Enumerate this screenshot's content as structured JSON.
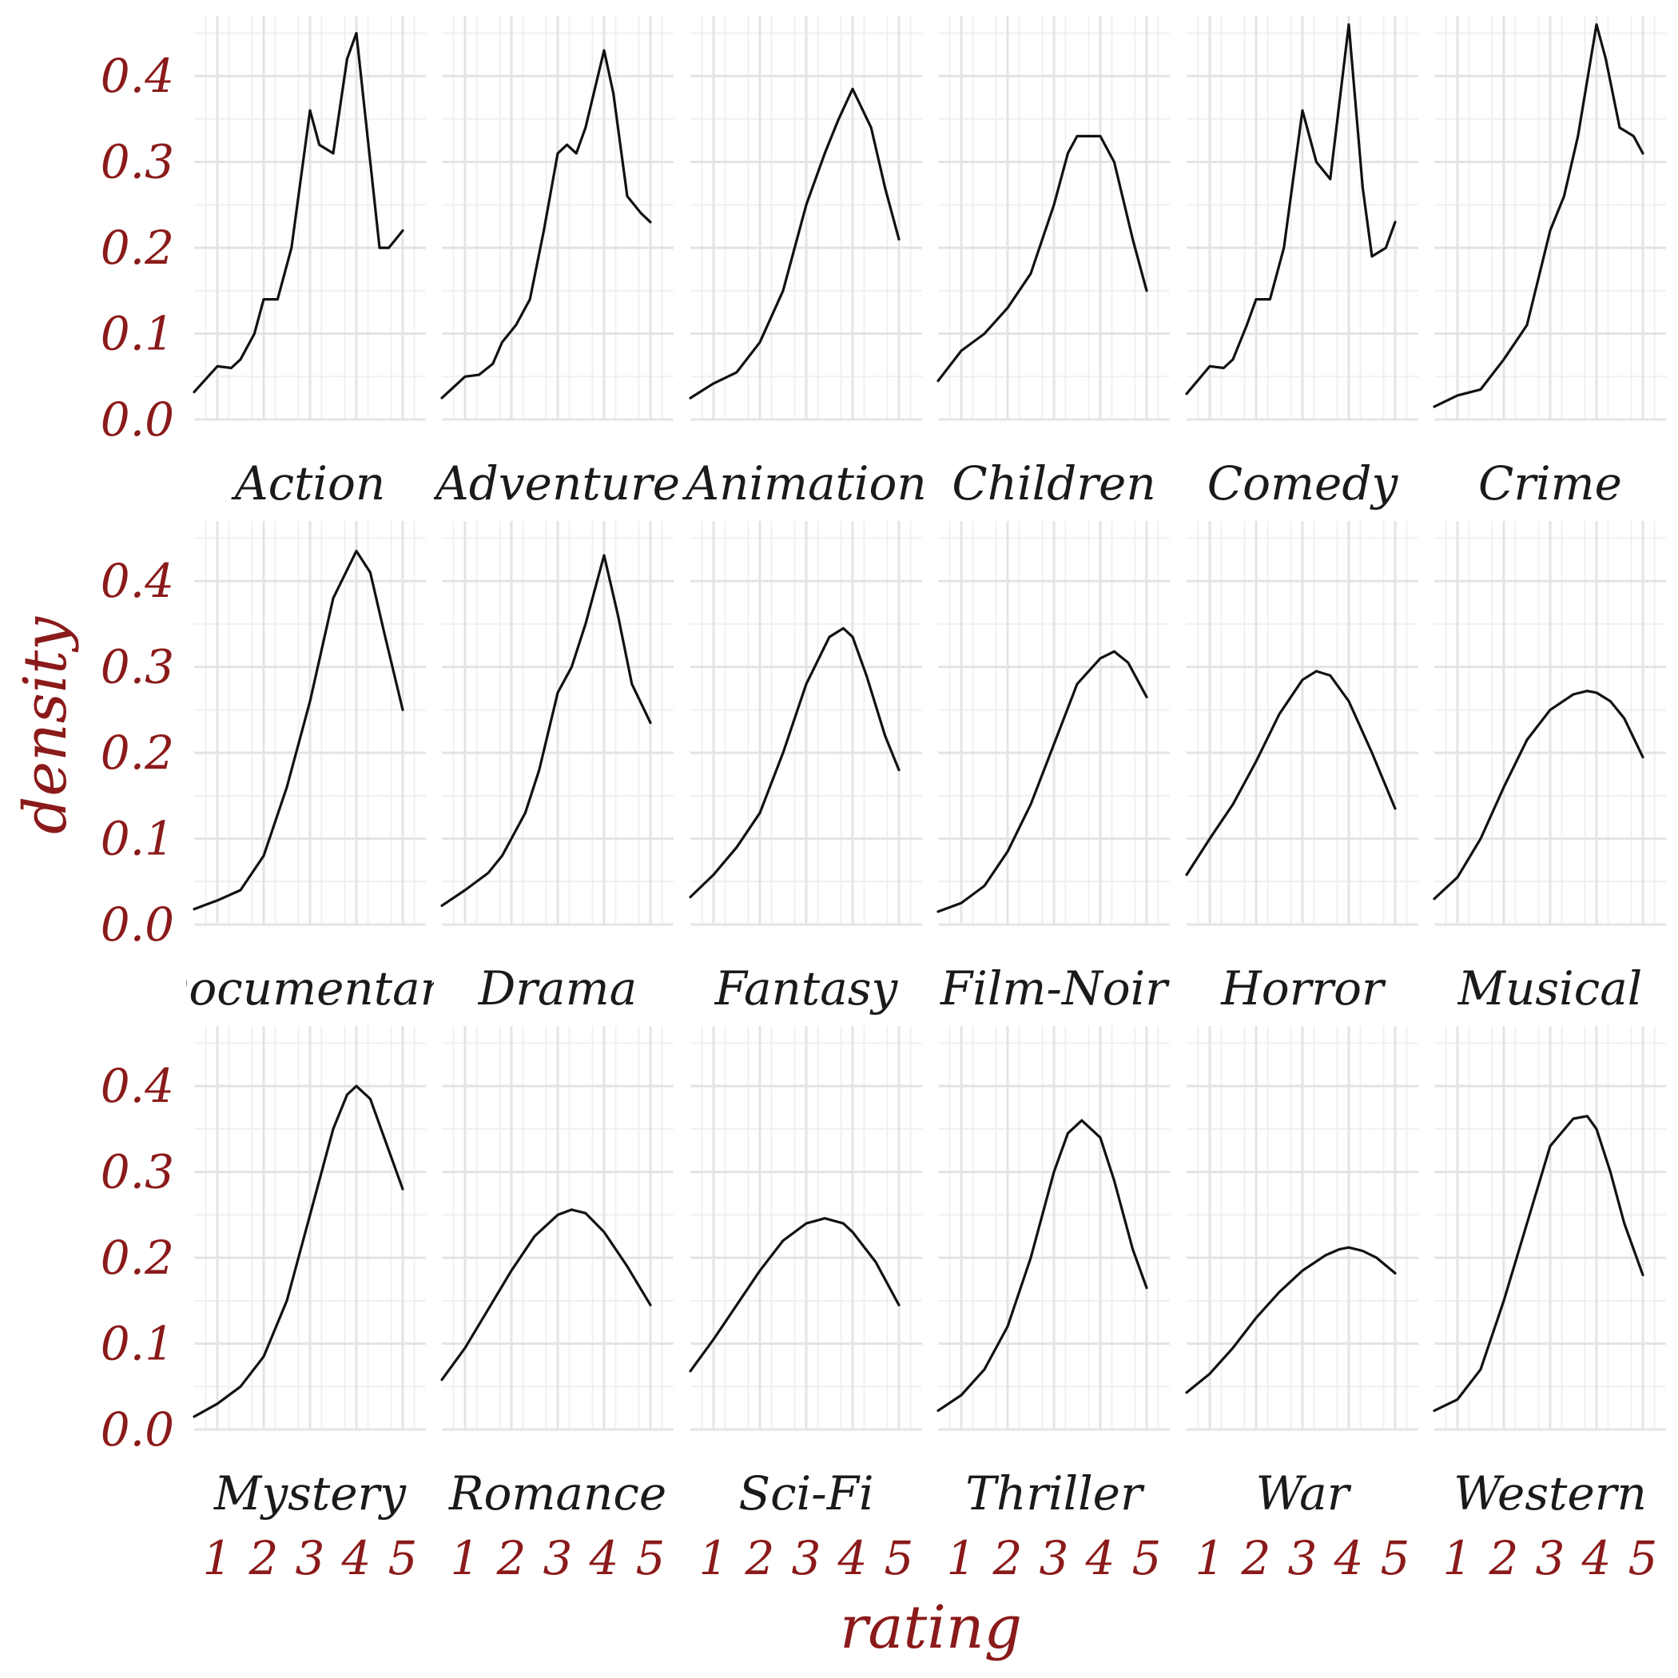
{
  "colors": {
    "axis_text": "#8b1a1a",
    "strip_text": "#1a1a1a",
    "grid_major": "#e4e4e4",
    "grid_minor": "#f0f0f0",
    "line": "#111111",
    "background": "#ffffff"
  },
  "chart_data": {
    "type": "line",
    "title": "",
    "xlabel": "rating",
    "ylabel": "density",
    "xlim": [
      0.5,
      5.5
    ],
    "ylim": [
      0,
      0.47
    ],
    "xticks": [
      1,
      2,
      3,
      4,
      5
    ],
    "yticks": [
      0.0,
      0.1,
      0.2,
      0.3,
      0.4
    ],
    "ytick_labels": [
      "0.0",
      "0.1",
      "0.2",
      "0.3",
      "0.4"
    ],
    "layout": "facet-wrap 3 rows x 6 columns",
    "grid": true,
    "facets": [
      {
        "label": "Action",
        "x": [
          0.5,
          1.0,
          1.3,
          1.5,
          1.8,
          2.0,
          2.3,
          2.6,
          3.0,
          3.2,
          3.5,
          3.8,
          4.0,
          4.3,
          4.5,
          4.7,
          5.0
        ],
        "y": [
          0.032,
          0.062,
          0.06,
          0.07,
          0.1,
          0.14,
          0.14,
          0.2,
          0.36,
          0.32,
          0.31,
          0.42,
          0.45,
          0.3,
          0.2,
          0.2,
          0.22
        ]
      },
      {
        "label": "Adventure",
        "x": [
          0.5,
          1.0,
          1.3,
          1.6,
          1.8,
          2.1,
          2.4,
          2.7,
          3.0,
          3.2,
          3.4,
          3.6,
          4.0,
          4.2,
          4.5,
          4.8,
          5.0
        ],
        "y": [
          0.025,
          0.05,
          0.052,
          0.065,
          0.09,
          0.11,
          0.14,
          0.22,
          0.31,
          0.32,
          0.31,
          0.34,
          0.43,
          0.38,
          0.26,
          0.24,
          0.23
        ]
      },
      {
        "label": "Animation",
        "x": [
          0.5,
          1.0,
          1.5,
          2.0,
          2.5,
          3.0,
          3.4,
          3.7,
          4.0,
          4.4,
          4.7,
          5.0
        ],
        "y": [
          0.025,
          0.042,
          0.055,
          0.09,
          0.15,
          0.25,
          0.31,
          0.35,
          0.385,
          0.34,
          0.27,
          0.21
        ]
      },
      {
        "label": "Children",
        "x": [
          0.5,
          1.0,
          1.5,
          2.0,
          2.5,
          3.0,
          3.3,
          3.5,
          3.8,
          4.0,
          4.3,
          4.7,
          5.0
        ],
        "y": [
          0.045,
          0.08,
          0.1,
          0.13,
          0.17,
          0.25,
          0.31,
          0.33,
          0.33,
          0.33,
          0.3,
          0.21,
          0.15
        ]
      },
      {
        "label": "Comedy",
        "x": [
          0.5,
          1.0,
          1.3,
          1.5,
          1.8,
          2.0,
          2.3,
          2.6,
          3.0,
          3.3,
          3.6,
          4.0,
          4.3,
          4.5,
          4.8,
          5.0
        ],
        "y": [
          0.03,
          0.062,
          0.06,
          0.07,
          0.11,
          0.14,
          0.14,
          0.2,
          0.36,
          0.3,
          0.28,
          0.46,
          0.27,
          0.19,
          0.2,
          0.23
        ]
      },
      {
        "label": "Crime",
        "x": [
          0.5,
          1.0,
          1.5,
          2.0,
          2.5,
          3.0,
          3.3,
          3.6,
          4.0,
          4.2,
          4.5,
          4.8,
          5.0
        ],
        "y": [
          0.015,
          0.028,
          0.035,
          0.07,
          0.11,
          0.22,
          0.26,
          0.33,
          0.46,
          0.42,
          0.34,
          0.33,
          0.31
        ]
      },
      {
        "label": "Documentary",
        "x": [
          0.5,
          1.0,
          1.5,
          2.0,
          2.5,
          3.0,
          3.5,
          4.0,
          4.3,
          4.6,
          5.0
        ],
        "y": [
          0.018,
          0.028,
          0.04,
          0.08,
          0.16,
          0.26,
          0.38,
          0.435,
          0.41,
          0.34,
          0.25
        ]
      },
      {
        "label": "Drama",
        "x": [
          0.5,
          1.0,
          1.5,
          1.8,
          2.0,
          2.3,
          2.6,
          3.0,
          3.3,
          3.6,
          4.0,
          4.3,
          4.6,
          5.0
        ],
        "y": [
          0.022,
          0.04,
          0.06,
          0.08,
          0.1,
          0.13,
          0.18,
          0.27,
          0.3,
          0.35,
          0.43,
          0.36,
          0.28,
          0.235
        ]
      },
      {
        "label": "Fantasy",
        "x": [
          0.5,
          1.0,
          1.5,
          2.0,
          2.5,
          3.0,
          3.5,
          3.8,
          4.0,
          4.3,
          4.7,
          5.0
        ],
        "y": [
          0.032,
          0.058,
          0.09,
          0.13,
          0.2,
          0.28,
          0.335,
          0.345,
          0.335,
          0.29,
          0.22,
          0.18
        ]
      },
      {
        "label": "Film-Noir",
        "x": [
          0.5,
          1.0,
          1.5,
          2.0,
          2.5,
          3.0,
          3.5,
          4.0,
          4.3,
          4.6,
          5.0
        ],
        "y": [
          0.015,
          0.025,
          0.045,
          0.085,
          0.14,
          0.21,
          0.28,
          0.31,
          0.318,
          0.305,
          0.265
        ]
      },
      {
        "label": "Horror",
        "x": [
          0.5,
          1.0,
          1.5,
          2.0,
          2.5,
          3.0,
          3.3,
          3.6,
          4.0,
          4.5,
          5.0
        ],
        "y": [
          0.058,
          0.1,
          0.14,
          0.19,
          0.245,
          0.285,
          0.295,
          0.29,
          0.26,
          0.2,
          0.135
        ]
      },
      {
        "label": "Musical",
        "x": [
          0.5,
          1.0,
          1.5,
          2.0,
          2.5,
          3.0,
          3.5,
          3.8,
          4.0,
          4.3,
          4.6,
          5.0
        ],
        "y": [
          0.03,
          0.055,
          0.1,
          0.16,
          0.215,
          0.25,
          0.268,
          0.272,
          0.27,
          0.26,
          0.24,
          0.195
        ]
      },
      {
        "label": "Mystery",
        "x": [
          0.5,
          1.0,
          1.5,
          2.0,
          2.5,
          3.0,
          3.5,
          3.8,
          4.0,
          4.3,
          4.6,
          5.0
        ],
        "y": [
          0.015,
          0.03,
          0.05,
          0.085,
          0.15,
          0.25,
          0.35,
          0.39,
          0.4,
          0.385,
          0.34,
          0.28
        ]
      },
      {
        "label": "Romance",
        "x": [
          0.5,
          1.0,
          1.5,
          2.0,
          2.5,
          3.0,
          3.3,
          3.6,
          4.0,
          4.5,
          5.0
        ],
        "y": [
          0.058,
          0.095,
          0.14,
          0.185,
          0.225,
          0.25,
          0.256,
          0.252,
          0.23,
          0.19,
          0.145
        ]
      },
      {
        "label": "Sci-Fi",
        "x": [
          0.5,
          1.0,
          1.5,
          2.0,
          2.5,
          3.0,
          3.4,
          3.8,
          4.0,
          4.5,
          5.0
        ],
        "y": [
          0.068,
          0.105,
          0.145,
          0.185,
          0.22,
          0.24,
          0.246,
          0.24,
          0.23,
          0.195,
          0.145
        ]
      },
      {
        "label": "Thriller",
        "x": [
          0.5,
          1.0,
          1.5,
          2.0,
          2.5,
          3.0,
          3.3,
          3.6,
          4.0,
          4.3,
          4.7,
          5.0
        ],
        "y": [
          0.022,
          0.04,
          0.07,
          0.12,
          0.2,
          0.3,
          0.345,
          0.36,
          0.34,
          0.29,
          0.21,
          0.165
        ]
      },
      {
        "label": "War",
        "x": [
          0.5,
          1.0,
          1.5,
          2.0,
          2.5,
          3.0,
          3.5,
          3.8,
          4.0,
          4.3,
          4.6,
          5.0
        ],
        "y": [
          0.043,
          0.065,
          0.095,
          0.13,
          0.16,
          0.185,
          0.203,
          0.21,
          0.212,
          0.208,
          0.2,
          0.182
        ]
      },
      {
        "label": "Western",
        "x": [
          0.5,
          1.0,
          1.5,
          2.0,
          2.5,
          3.0,
          3.5,
          3.8,
          4.0,
          4.3,
          4.6,
          5.0
        ],
        "y": [
          0.022,
          0.035,
          0.07,
          0.15,
          0.24,
          0.33,
          0.362,
          0.365,
          0.35,
          0.3,
          0.24,
          0.18
        ]
      }
    ]
  }
}
